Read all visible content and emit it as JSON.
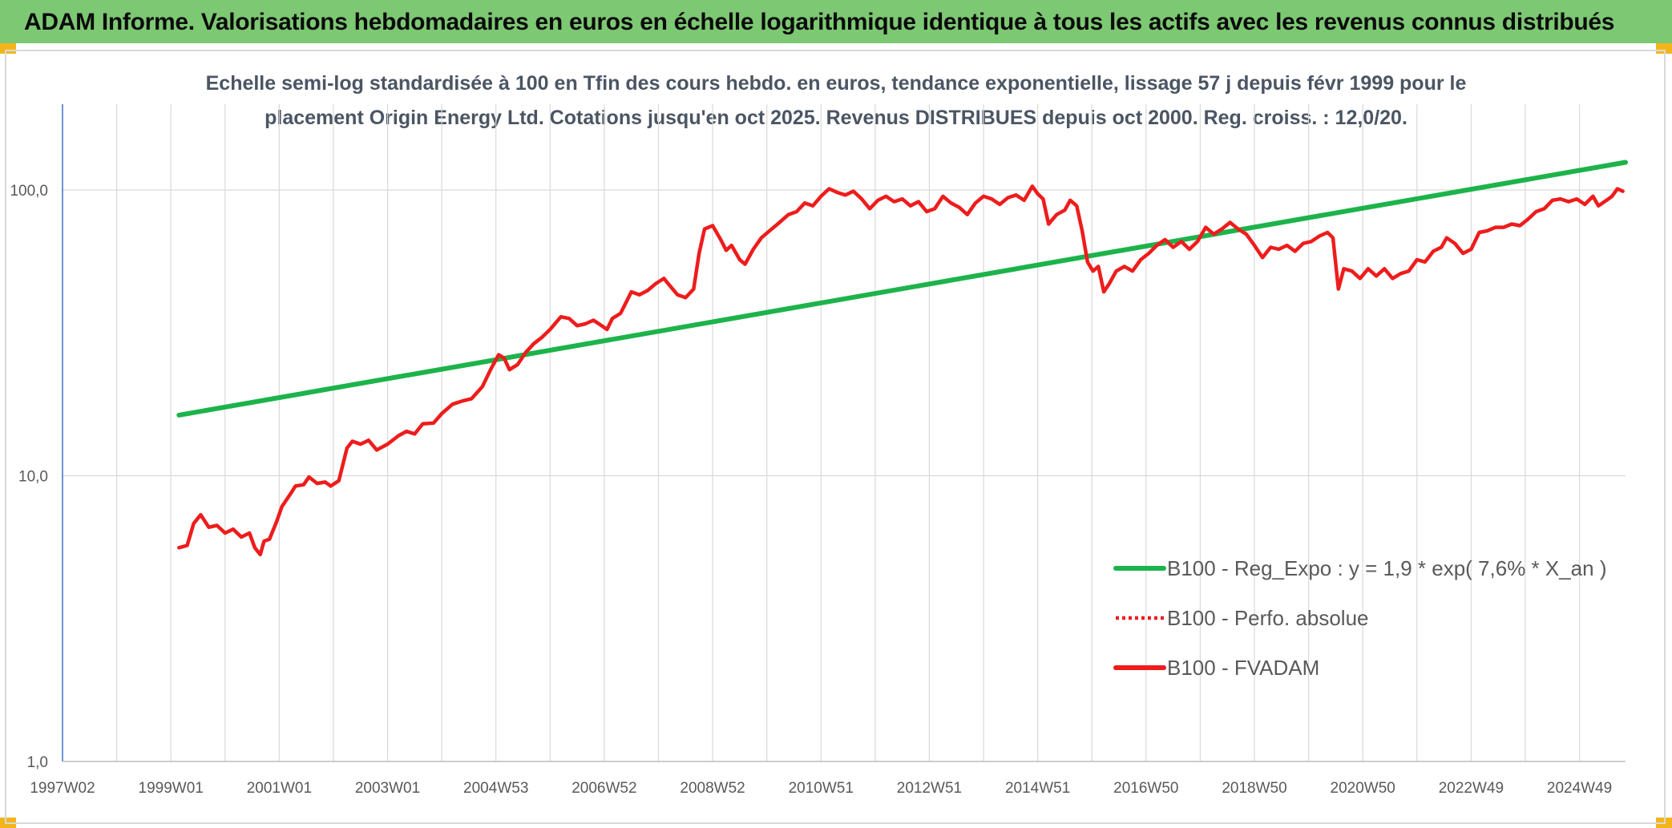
{
  "header": {
    "title": "ADAM Informe. Valorisations hebdomadaires en euros en échelle logarithmique identique à tous les actifs avec les revenus connus distribués",
    "bar_color": "#7dc873",
    "corner_color": "#f2b51c"
  },
  "chart_data": {
    "type": "line",
    "title_lines": [
      "Echelle semi-log standardisée à 100 en Tfin des cours hebdo. en euros, tendance exponentielle, lissage 57 j depuis févr 1999 pour le",
      "placement Origin Energy Ltd. Cotations jusqu'en oct 2025. Revenus DISTRIBUES depuis oct 2000. Reg. croiss. : 12,0/20."
    ],
    "y_scale": "log",
    "ylim": [
      1,
      180
    ],
    "y_ticks": [
      {
        "value": 1,
        "label": "1,0"
      },
      {
        "value": 10,
        "label": "10,0"
      },
      {
        "value": 100,
        "label": "100,0"
      }
    ],
    "x_unit": "year",
    "xlim": [
      1997.0,
      2025.85
    ],
    "x_ticks": [
      {
        "value": 1997.0,
        "label": "1997W02"
      },
      {
        "value": 1999.0,
        "label": "1999W01"
      },
      {
        "value": 2001.0,
        "label": "2001W01"
      },
      {
        "value": 2003.0,
        "label": "2003W01"
      },
      {
        "value": 2005.0,
        "label": "2004W53"
      },
      {
        "value": 2007.0,
        "label": "2006W52"
      },
      {
        "value": 2009.0,
        "label": "2008W52"
      },
      {
        "value": 2011.0,
        "label": "2010W51"
      },
      {
        "value": 2013.0,
        "label": "2012W51"
      },
      {
        "value": 2015.0,
        "label": "2014W51"
      },
      {
        "value": 2017.0,
        "label": "2016W50"
      },
      {
        "value": 2019.0,
        "label": "2018W50"
      },
      {
        "value": 2021.0,
        "label": "2020W50"
      },
      {
        "value": 2023.0,
        "label": "2022W49"
      },
      {
        "value": 2025.0,
        "label": "2024W49"
      }
    ],
    "grid": true,
    "legend_position": "bottom-right",
    "series": [
      {
        "name": "B100 - Reg_Expo : y = 1,9 * exp( 7,6% *  X_an )",
        "color": "#1db34b",
        "style": "solid",
        "points": [
          [
            1999.15,
            16.3
          ],
          [
            2025.85,
            125.0
          ]
        ]
      },
      {
        "name": "B100 - Perfo. absolue",
        "color": "#ee1c1c",
        "style": "dotted",
        "points": []
      },
      {
        "name": "B100 - FVADAM",
        "color": "#ee1c1c",
        "style": "solid",
        "points": [
          [
            1999.15,
            5.6
          ],
          [
            1999.3,
            5.7
          ],
          [
            1999.42,
            6.8
          ],
          [
            1999.55,
            7.3
          ],
          [
            1999.7,
            6.6
          ],
          [
            1999.85,
            6.7
          ],
          [
            2000.0,
            6.3
          ],
          [
            2000.15,
            6.5
          ],
          [
            2000.3,
            6.1
          ],
          [
            2000.45,
            6.3
          ],
          [
            2000.55,
            5.6
          ],
          [
            2000.65,
            5.3
          ],
          [
            2000.72,
            5.9
          ],
          [
            2000.82,
            6.0
          ],
          [
            2000.95,
            6.9
          ],
          [
            2001.05,
            7.8
          ],
          [
            2001.2,
            8.6
          ],
          [
            2001.3,
            9.2
          ],
          [
            2001.45,
            9.3
          ],
          [
            2001.55,
            9.9
          ],
          [
            2001.7,
            9.4
          ],
          [
            2001.85,
            9.5
          ],
          [
            2001.95,
            9.2
          ],
          [
            2002.1,
            9.6
          ],
          [
            2002.25,
            12.5
          ],
          [
            2002.35,
            13.2
          ],
          [
            2002.5,
            12.9
          ],
          [
            2002.65,
            13.3
          ],
          [
            2002.8,
            12.3
          ],
          [
            2003.0,
            12.9
          ],
          [
            2003.2,
            13.8
          ],
          [
            2003.35,
            14.3
          ],
          [
            2003.5,
            14.0
          ],
          [
            2003.65,
            15.2
          ],
          [
            2003.85,
            15.3
          ],
          [
            2004.0,
            16.5
          ],
          [
            2004.2,
            17.8
          ],
          [
            2004.4,
            18.3
          ],
          [
            2004.55,
            18.6
          ],
          [
            2004.75,
            20.5
          ],
          [
            2004.9,
            23.5
          ],
          [
            2005.05,
            26.5
          ],
          [
            2005.15,
            25.8
          ],
          [
            2005.25,
            23.5
          ],
          [
            2005.4,
            24.5
          ],
          [
            2005.55,
            27.0
          ],
          [
            2005.7,
            29.0
          ],
          [
            2005.85,
            30.5
          ],
          [
            2006.0,
            32.5
          ],
          [
            2006.2,
            36.0
          ],
          [
            2006.35,
            35.5
          ],
          [
            2006.5,
            33.5
          ],
          [
            2006.65,
            34.0
          ],
          [
            2006.8,
            35.0
          ],
          [
            2006.95,
            33.5
          ],
          [
            2007.05,
            32.5
          ],
          [
            2007.15,
            35.5
          ],
          [
            2007.3,
            37.0
          ],
          [
            2007.5,
            44.0
          ],
          [
            2007.65,
            43.0
          ],
          [
            2007.8,
            44.5
          ],
          [
            2007.95,
            47.0
          ],
          [
            2008.1,
            49.0
          ],
          [
            2008.2,
            46.5
          ],
          [
            2008.35,
            43.0
          ],
          [
            2008.5,
            42.0
          ],
          [
            2008.65,
            45.0
          ],
          [
            2008.75,
            60.0
          ],
          [
            2008.85,
            73.0
          ],
          [
            2009.0,
            75.0
          ],
          [
            2009.15,
            67.0
          ],
          [
            2009.25,
            61.5
          ],
          [
            2009.35,
            64.0
          ],
          [
            2009.5,
            57.0
          ],
          [
            2009.6,
            55.0
          ],
          [
            2009.75,
            62.0
          ],
          [
            2009.9,
            68.0
          ],
          [
            2010.05,
            72.0
          ],
          [
            2010.2,
            76.0
          ],
          [
            2010.4,
            82.0
          ],
          [
            2010.55,
            84.0
          ],
          [
            2010.7,
            90.0
          ],
          [
            2010.85,
            88.0
          ],
          [
            2011.0,
            95.0
          ],
          [
            2011.15,
            101.0
          ],
          [
            2011.3,
            98.0
          ],
          [
            2011.45,
            96.0
          ],
          [
            2011.6,
            99.0
          ],
          [
            2011.75,
            93.0
          ],
          [
            2011.9,
            86.0
          ],
          [
            2012.05,
            92.0
          ],
          [
            2012.2,
            95.0
          ],
          [
            2012.35,
            91.0
          ],
          [
            2012.5,
            93.0
          ],
          [
            2012.65,
            88.0
          ],
          [
            2012.8,
            91.0
          ],
          [
            2012.95,
            84.0
          ],
          [
            2013.1,
            86.0
          ],
          [
            2013.25,
            95.0
          ],
          [
            2013.4,
            90.0
          ],
          [
            2013.55,
            87.0
          ],
          [
            2013.7,
            82.0
          ],
          [
            2013.85,
            90.0
          ],
          [
            2014.0,
            95.0
          ],
          [
            2014.15,
            93.0
          ],
          [
            2014.3,
            89.0
          ],
          [
            2014.45,
            94.0
          ],
          [
            2014.6,
            96.0
          ],
          [
            2014.75,
            92.0
          ],
          [
            2014.9,
            103.0
          ],
          [
            2015.0,
            97.0
          ],
          [
            2015.1,
            93.0
          ],
          [
            2015.2,
            76.0
          ],
          [
            2015.35,
            82.0
          ],
          [
            2015.5,
            85.0
          ],
          [
            2015.6,
            92.0
          ],
          [
            2015.72,
            88.0
          ],
          [
            2015.82,
            72.0
          ],
          [
            2015.92,
            56.0
          ],
          [
            2016.02,
            52.0
          ],
          [
            2016.12,
            54.0
          ],
          [
            2016.22,
            44.0
          ],
          [
            2016.32,
            47.0
          ],
          [
            2016.45,
            52.0
          ],
          [
            2016.6,
            54.0
          ],
          [
            2016.75,
            52.0
          ],
          [
            2016.9,
            57.0
          ],
          [
            2017.05,
            60.0
          ],
          [
            2017.2,
            64.0
          ],
          [
            2017.35,
            67.0
          ],
          [
            2017.5,
            63.0
          ],
          [
            2017.65,
            66.0
          ],
          [
            2017.8,
            62.0
          ],
          [
            2017.95,
            66.0
          ],
          [
            2018.1,
            74.0
          ],
          [
            2018.25,
            70.0
          ],
          [
            2018.4,
            73.0
          ],
          [
            2018.55,
            77.0
          ],
          [
            2018.7,
            73.0
          ],
          [
            2018.85,
            70.0
          ],
          [
            2019.0,
            64.0
          ],
          [
            2019.15,
            58.0
          ],
          [
            2019.3,
            63.0
          ],
          [
            2019.45,
            62.0
          ],
          [
            2019.6,
            64.0
          ],
          [
            2019.75,
            61.0
          ],
          [
            2019.9,
            65.0
          ],
          [
            2020.05,
            66.0
          ],
          [
            2020.2,
            69.0
          ],
          [
            2020.35,
            71.0
          ],
          [
            2020.45,
            68.0
          ],
          [
            2020.55,
            45.0
          ],
          [
            2020.65,
            53.0
          ],
          [
            2020.8,
            52.0
          ],
          [
            2020.95,
            49.0
          ],
          [
            2021.1,
            53.0
          ],
          [
            2021.25,
            50.0
          ],
          [
            2021.4,
            53.0
          ],
          [
            2021.55,
            49.0
          ],
          [
            2021.7,
            51.0
          ],
          [
            2021.85,
            52.0
          ],
          [
            2022.0,
            57.0
          ],
          [
            2022.15,
            56.0
          ],
          [
            2022.3,
            61.0
          ],
          [
            2022.45,
            63.0
          ],
          [
            2022.55,
            68.0
          ],
          [
            2022.7,
            65.0
          ],
          [
            2022.85,
            60.0
          ],
          [
            2023.0,
            62.0
          ],
          [
            2023.15,
            71.0
          ],
          [
            2023.3,
            72.0
          ],
          [
            2023.45,
            74.0
          ],
          [
            2023.6,
            74.0
          ],
          [
            2023.75,
            76.0
          ],
          [
            2023.9,
            75.0
          ],
          [
            2024.05,
            79.0
          ],
          [
            2024.2,
            84.0
          ],
          [
            2024.35,
            86.0
          ],
          [
            2024.5,
            92.0
          ],
          [
            2024.65,
            93.0
          ],
          [
            2024.8,
            91.0
          ],
          [
            2024.95,
            93.0
          ],
          [
            2025.1,
            89.0
          ],
          [
            2025.25,
            95.0
          ],
          [
            2025.35,
            88.0
          ],
          [
            2025.5,
            92.0
          ],
          [
            2025.6,
            95.0
          ],
          [
            2025.7,
            101.0
          ],
          [
            2025.8,
            99.0
          ]
        ]
      }
    ],
    "gridline_color": "#d9d9d9",
    "axis_color": "#4472c4"
  }
}
